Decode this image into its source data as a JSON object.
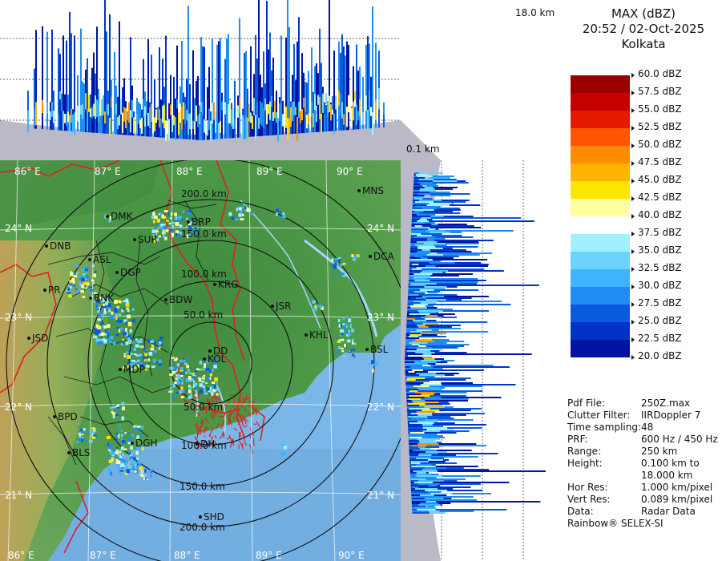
{
  "header": {
    "product": "MAX (dBZ)",
    "datetime": "20:52 / 02-Oct-2025",
    "station": "Kolkata"
  },
  "height_labels": {
    "top": "18.0 km",
    "bottom": "0.1 km"
  },
  "legend": {
    "levels": [
      {
        "label": "60.0 dBZ",
        "color": "#ffffff"
      },
      {
        "label": "57.5 dBZ",
        "color": "#9a0000"
      },
      {
        "label": "55.0 dBZ",
        "color": "#c40000"
      },
      {
        "label": "52.5 dBZ",
        "color": "#e61a00"
      },
      {
        "label": "50.0 dBZ",
        "color": "#ff5500"
      },
      {
        "label": "47.5 dBZ",
        "color": "#ff8c00"
      },
      {
        "label": "45.0 dBZ",
        "color": "#ffb400"
      },
      {
        "label": "42.5 dBZ",
        "color": "#ffe600"
      },
      {
        "label": "40.0 dBZ",
        "color": "#ffffa0"
      },
      {
        "label": "37.5 dBZ",
        "color": "#ffffff"
      },
      {
        "label": "35.0 dBZ",
        "color": "#a0f0ff"
      },
      {
        "label": "32.5 dBZ",
        "color": "#6ed2ff"
      },
      {
        "label": "30.0 dBZ",
        "color": "#3cb4ff"
      },
      {
        "label": "27.5 dBZ",
        "color": "#1e8cf0"
      },
      {
        "label": "25.0 dBZ",
        "color": "#0a5adc"
      },
      {
        "label": "22.5 dBZ",
        "color": "#0032c8"
      },
      {
        "label": "20.0 dBZ",
        "color": "#0014a0"
      }
    ]
  },
  "info": [
    {
      "key": "Pdf File:",
      "value": "250Z.max"
    },
    {
      "key": "Clutter Filter:",
      "value": "IIRDoppler 7"
    },
    {
      "key": "Time sampling:",
      "value": "48"
    },
    {
      "key": "PRF:",
      "value": "600 Hz / 450 Hz"
    },
    {
      "key": "Range:",
      "value": "250 km"
    },
    {
      "key": "Height:",
      "value": "0.100 km to"
    },
    {
      "key": "",
      "value": "18.000 km"
    },
    {
      "key": "Hor Res:",
      "value": "1.000 km/pixel"
    },
    {
      "key": "Vert Res:",
      "value": "0.089 km/pixel"
    },
    {
      "key": "Data:",
      "value": "Radar Data"
    }
  ],
  "credit": "Rainbow® SELEX-SI",
  "map": {
    "lon_labels": [
      "86° E",
      "87° E",
      "88° E",
      "89° E",
      "90° E"
    ],
    "lat_labels": [
      "24° N",
      "23° N",
      "22° N",
      "21° N"
    ],
    "range_rings": [
      "50.0 km",
      "100.0 km",
      "150.0 km",
      "200.0 km"
    ],
    "places": [
      "MNS",
      "DMK",
      "BRP",
      "SUR",
      "DNB",
      "ASL",
      "DGP",
      "DCA",
      "PR",
      "BNK",
      "KRG",
      "BDW",
      "JSR",
      "KHL",
      "JSD",
      "BSL",
      "MDP",
      "DD",
      "KOL",
      "BPD",
      "DGH",
      "BLS",
      "DH",
      "SHD"
    ]
  }
}
